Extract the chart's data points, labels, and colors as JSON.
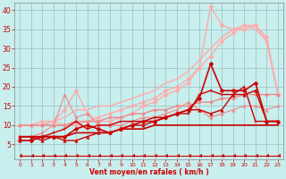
{
  "xlabel": "Vent moyen/en rafales ( km/h )",
  "xlim": [
    -0.5,
    23.5
  ],
  "ylim": [
    1,
    42
  ],
  "yticks": [
    5,
    10,
    15,
    20,
    25,
    30,
    35,
    40
  ],
  "xticks": [
    0,
    1,
    2,
    3,
    4,
    5,
    6,
    7,
    8,
    9,
    10,
    11,
    12,
    13,
    14,
    15,
    16,
    17,
    18,
    19,
    20,
    21,
    22,
    23
  ],
  "bg_color": "#c8eeee",
  "grid_color": "#9bbcbc",
  "curves": [
    {
      "x": [
        0,
        1,
        2,
        3,
        4,
        5,
        6,
        7,
        8,
        9,
        10,
        11,
        12,
        13,
        14,
        15,
        16,
        17,
        18,
        19,
        20,
        21,
        22,
        23
      ],
      "y": [
        10,
        10,
        10,
        11,
        12,
        14,
        14,
        15,
        15,
        16,
        17,
        18,
        19,
        21,
        22,
        24,
        27,
        30,
        33,
        35,
        36,
        35,
        32,
        18
      ],
      "color": "#ffaaaa",
      "lw": 1.0,
      "marker": null,
      "ms": 0,
      "alpha": 1.0
    },
    {
      "x": [
        0,
        1,
        2,
        3,
        4,
        5,
        6,
        7,
        8,
        9,
        10,
        11,
        12,
        13,
        14,
        15,
        16,
        17,
        18,
        19,
        20,
        21,
        22,
        23
      ],
      "y": [
        10,
        10,
        10,
        11,
        14,
        19,
        13,
        11,
        11,
        12,
        13,
        15,
        16,
        18,
        19,
        21,
        25,
        41,
        36,
        35,
        35,
        36,
        32,
        18
      ],
      "color": "#ffaaaa",
      "lw": 1.0,
      "marker": "D",
      "ms": 2.5,
      "alpha": 1.0
    },
    {
      "x": [
        0,
        1,
        2,
        3,
        4,
        5,
        6,
        7,
        8,
        9,
        10,
        11,
        12,
        13,
        14,
        15,
        16,
        17,
        18,
        19,
        20,
        21,
        22,
        23
      ],
      "y": [
        10,
        10,
        11,
        11,
        10,
        10,
        11,
        12,
        13,
        14,
        15,
        16,
        17,
        19,
        20,
        22,
        25,
        28,
        32,
        34,
        36,
        36,
        33,
        18
      ],
      "color": "#ffaaaa",
      "lw": 1.0,
      "marker": "D",
      "ms": 2.5,
      "alpha": 1.0
    },
    {
      "x": [
        0,
        1,
        2,
        3,
        4,
        5,
        6,
        7,
        8,
        9,
        10,
        11,
        12,
        13,
        14,
        15,
        16,
        17,
        18,
        19,
        20,
        21,
        22,
        23
      ],
      "y": [
        10,
        10,
        10,
        10,
        10,
        11,
        11,
        11,
        12,
        12,
        13,
        13,
        14,
        14,
        15,
        15,
        16,
        16,
        17,
        17,
        18,
        18,
        18,
        18
      ],
      "color": "#ee8888",
      "lw": 1.0,
      "marker": "D",
      "ms": 2.0,
      "alpha": 1.0
    },
    {
      "x": [
        0,
        1,
        2,
        3,
        4,
        5,
        6,
        7,
        8,
        9,
        10,
        11,
        12,
        13,
        14,
        15,
        16,
        17,
        18,
        19,
        20,
        21,
        22,
        23
      ],
      "y": [
        7,
        7,
        8,
        10,
        18,
        12,
        13,
        10,
        10,
        10,
        11,
        12,
        12,
        13,
        14,
        16,
        14,
        12,
        13,
        14,
        15,
        15,
        14,
        15
      ],
      "color": "#ee8888",
      "lw": 0.8,
      "marker": "^",
      "ms": 2.5,
      "alpha": 1.0
    },
    {
      "x": [
        0,
        1,
        2,
        3,
        4,
        5,
        6,
        7,
        8,
        9,
        10,
        11,
        12,
        13,
        14,
        15,
        16,
        17,
        18,
        19,
        20,
        21,
        22,
        23
      ],
      "y": [
        7,
        7,
        7,
        7,
        7,
        8,
        8,
        8,
        8,
        9,
        9,
        9,
        10,
        10,
        10,
        10,
        10,
        10,
        10,
        10,
        10,
        10,
        10,
        10
      ],
      "color": "#cc0000",
      "lw": 1.2,
      "marker": null,
      "ms": 0,
      "alpha": 1.0
    },
    {
      "x": [
        0,
        1,
        2,
        3,
        4,
        5,
        6,
        7,
        8,
        9,
        10,
        11,
        12,
        13,
        14,
        15,
        16,
        17,
        18,
        19,
        20,
        21,
        22,
        23
      ],
      "y": [
        6,
        6,
        7,
        7,
        7,
        9,
        10,
        9,
        8,
        9,
        10,
        11,
        11,
        12,
        13,
        14,
        17,
        26,
        19,
        19,
        19,
        21,
        11,
        11
      ],
      "color": "#cc0000",
      "lw": 1.2,
      "marker": "D",
      "ms": 2.5,
      "alpha": 1.0
    },
    {
      "x": [
        0,
        1,
        2,
        3,
        4,
        5,
        6,
        7,
        8,
        9,
        10,
        11,
        12,
        13,
        14,
        15,
        16,
        17,
        18,
        19,
        20,
        21,
        22,
        23
      ],
      "y": [
        7,
        7,
        7,
        8,
        9,
        11,
        9,
        10,
        10,
        11,
        11,
        11,
        12,
        12,
        13,
        13,
        18,
        19,
        18,
        18,
        20,
        11,
        11,
        11
      ],
      "color": "#cc0000",
      "lw": 1.0,
      "marker": "+",
      "ms": 3.5,
      "alpha": 1.0
    },
    {
      "x": [
        0,
        1,
        2,
        3,
        4,
        5,
        6,
        7,
        8,
        9,
        10,
        11,
        12,
        13,
        14,
        15,
        16,
        17,
        18,
        19,
        20,
        21,
        22,
        23
      ],
      "y": [
        7,
        7,
        6,
        7,
        6,
        6,
        7,
        8,
        8,
        9,
        10,
        10,
        11,
        12,
        13,
        14,
        14,
        13,
        14,
        18,
        18,
        19,
        11,
        11
      ],
      "color": "#cc0000",
      "lw": 1.0,
      "marker": "^",
      "ms": 2.5,
      "alpha": 1.0
    },
    {
      "x": [
        0,
        1,
        2,
        3,
        4,
        5,
        6,
        7,
        8,
        9,
        10,
        11,
        12,
        13,
        14,
        15,
        16,
        17,
        18,
        19,
        20,
        21,
        22,
        23
      ],
      "y": [
        2,
        2,
        2,
        2,
        2,
        2,
        2,
        2,
        2,
        2,
        2,
        2,
        2,
        2,
        2,
        2,
        2,
        2,
        2,
        2,
        2,
        2,
        2,
        2
      ],
      "color": "#cc0000",
      "lw": 0.8,
      "marker": 4,
      "ms": 3.0,
      "alpha": 1.0
    }
  ]
}
